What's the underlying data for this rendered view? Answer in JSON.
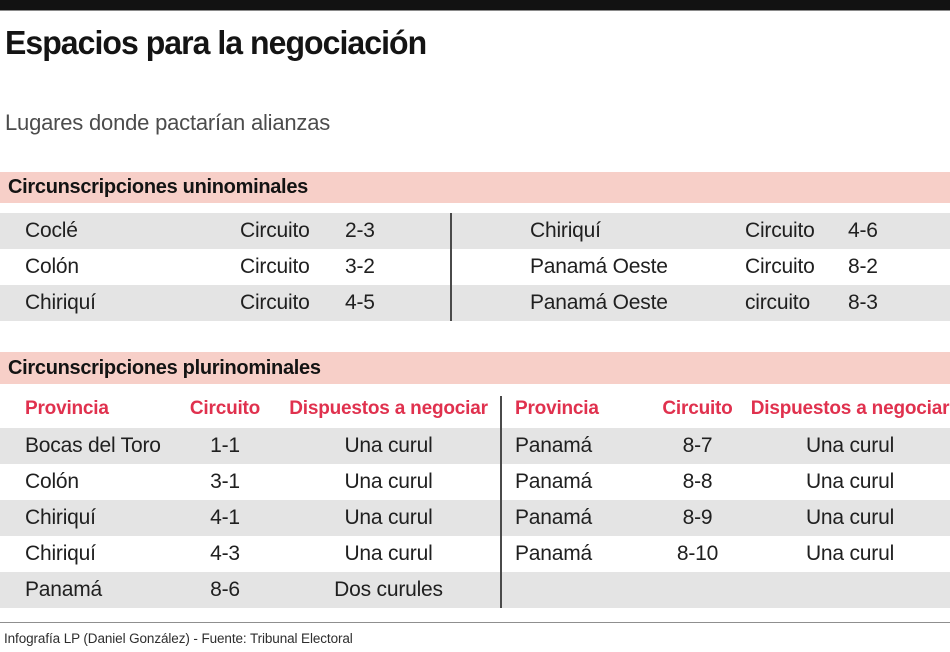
{
  "page": {
    "title": "Espacios para la negociación",
    "subtitle": "Lugares donde pactarían alianzas",
    "footer": "Infografía LP (Daniel González) - Fuente: Tribunal Electoral"
  },
  "colors": {
    "section_bar_pink": "#f7cfc8",
    "header_red": "#e0314e",
    "stripe_gray": "#e4e4e4",
    "top_bar_black": "#121212"
  },
  "chart_data": [
    {
      "type": "table",
      "section_title": "Circunscripciones uninominales",
      "left_rows": [
        {
          "province": "Coclé",
          "circuit_label": "Circuito",
          "circuit": "2-3"
        },
        {
          "province": "Colón",
          "circuit_label": "Circuito",
          "circuit": "3-2"
        },
        {
          "province": "Chiriquí",
          "circuit_label": "Circuito",
          "circuit": "4-5"
        }
      ],
      "right_rows": [
        {
          "province": "Chiriquí",
          "circuit_label": "Circuito",
          "circuit": "4-6"
        },
        {
          "province": "Panamá Oeste",
          "circuit_label": "Circuito",
          "circuit": "8-2"
        },
        {
          "province": "Panamá Oeste",
          "circuit_label": "circuito",
          "circuit": "8-3"
        }
      ]
    },
    {
      "type": "table",
      "section_title": "Circunscripciones plurinominales",
      "columns": {
        "province": "Provincia",
        "circuit": "Circuito",
        "seats": "Dispuestos a negociar"
      },
      "left_rows": [
        {
          "province": "Bocas del Toro",
          "circuit": "1-1",
          "seats": "Una curul"
        },
        {
          "province": "Colón",
          "circuit": "3-1",
          "seats": "Una curul"
        },
        {
          "province": "Chiriquí",
          "circuit": "4-1",
          "seats": "Una curul"
        },
        {
          "province": "Chiriquí",
          "circuit": "4-3",
          "seats": "Una curul"
        },
        {
          "province": "Panamá",
          "circuit": "8-6",
          "seats": "Dos curules"
        }
      ],
      "right_rows": [
        {
          "province": "Panamá",
          "circuit": "8-7",
          "seats": "Una curul"
        },
        {
          "province": "Panamá",
          "circuit": "8-8",
          "seats": "Una curul"
        },
        {
          "province": "Panamá",
          "circuit": "8-9",
          "seats": "Una curul"
        },
        {
          "province": "Panamá",
          "circuit": "8-10",
          "seats": "Una curul"
        }
      ]
    }
  ]
}
